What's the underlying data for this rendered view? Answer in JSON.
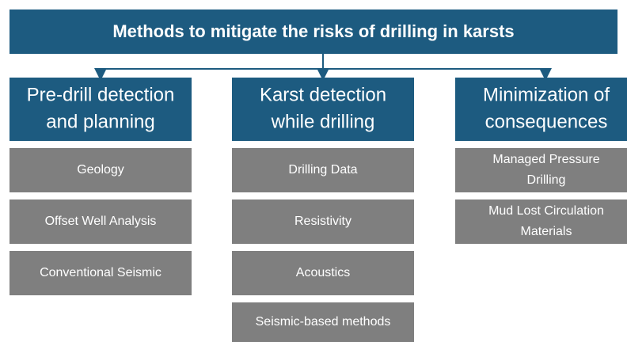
{
  "title": "Methods to mitigate the risks of drilling in karsts",
  "columns": [
    {
      "heading": [
        "Pre-drill detection",
        "and planning"
      ],
      "items": [
        [
          "Geology"
        ],
        [
          "Offset Well Analysis"
        ],
        [
          "Conventional Seismic"
        ]
      ]
    },
    {
      "heading": [
        "Karst detection",
        "while drilling"
      ],
      "items": [
        [
          "Drilling Data"
        ],
        [
          "Resistivity"
        ],
        [
          "Acoustics"
        ],
        [
          "Seismic-based methods"
        ]
      ]
    },
    {
      "heading": [
        "Minimization of",
        "consequences"
      ],
      "items": [
        [
          "Managed Pressure",
          "Drilling"
        ],
        [
          "Mud Lost Circulation",
          "Materials"
        ]
      ]
    }
  ]
}
